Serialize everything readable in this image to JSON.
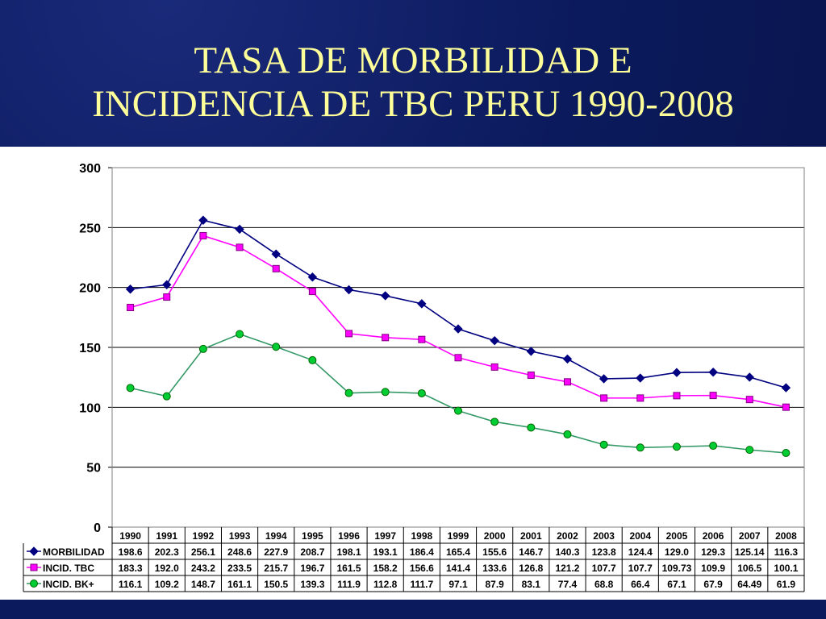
{
  "slide": {
    "title_line1": "TASA DE MORBILIDAD E",
    "title_line2": "INCIDENCIA DE TBC PERU 1990-2008"
  },
  "colors": {
    "background": "#0b1a5c",
    "title": "#ffff99",
    "morbilidad": "#000080",
    "incid_tbc": "#ff00ff",
    "incid_bk": "#00cc33",
    "bk_line": "#339966"
  },
  "chart_data": {
    "type": "line",
    "title": "",
    "xlabel": "",
    "ylabel": "",
    "ylim": [
      0,
      300
    ],
    "yticks": [
      0,
      50,
      100,
      150,
      200,
      250,
      300
    ],
    "grid": true,
    "legend": "data-table-left",
    "categories": [
      "1990",
      "1991",
      "1992",
      "1993",
      "1994",
      "1995",
      "1996",
      "1997",
      "1998",
      "1999",
      "2000",
      "2001",
      "2002",
      "2003",
      "2004",
      "2005",
      "2006",
      "2007",
      "2008"
    ],
    "series": [
      {
        "name": "MORBILIDAD",
        "marker": "diamond",
        "values": [
          198.6,
          202.3,
          256.1,
          248.6,
          227.9,
          208.7,
          198.1,
          193.1,
          186.4,
          165.4,
          155.6,
          146.7,
          140.3,
          123.8,
          124.4,
          129.0,
          129.3,
          125.14,
          116.3
        ],
        "labels": [
          "198.6",
          "202.3",
          "256.1",
          "248.6",
          "227.9",
          "208.7",
          "198.1",
          "193.1",
          "186.4",
          "165.4",
          "155.6",
          "146.7",
          "140.3",
          "123.8",
          "124.4",
          "129.0",
          "129.3",
          "125.14",
          "116.3"
        ]
      },
      {
        "name": "INCID. TBC",
        "marker": "square",
        "values": [
          183.3,
          192.0,
          243.2,
          233.5,
          215.7,
          196.7,
          161.5,
          158.2,
          156.6,
          141.4,
          133.6,
          126.8,
          121.2,
          107.7,
          107.7,
          109.73,
          109.9,
          106.5,
          100.1
        ],
        "labels": [
          "183.3",
          "192.0",
          "243.2",
          "233.5",
          "215.7",
          "196.7",
          "161.5",
          "158.2",
          "156.6",
          "141.4",
          "133.6",
          "126.8",
          "121.2",
          "107.7",
          "107.7",
          "109.73",
          "109.9",
          "106.5",
          "100.1"
        ]
      },
      {
        "name": "INCID. BK+",
        "marker": "circle",
        "values": [
          116.1,
          109.2,
          148.7,
          161.1,
          150.5,
          139.3,
          111.9,
          112.8,
          111.7,
          97.1,
          87.9,
          83.1,
          77.4,
          68.8,
          66.4,
          67.1,
          67.9,
          64.49,
          61.9
        ],
        "labels": [
          "116.1",
          "109.2",
          "148.7",
          "161.1",
          "150.5",
          "139.3",
          "111.9",
          "112.8",
          "111.7",
          "97.1",
          "87.9",
          "83.1",
          "77.4",
          "68.8",
          "66.4",
          "67.1",
          "67.9",
          "64.49",
          "61.9"
        ]
      }
    ]
  }
}
